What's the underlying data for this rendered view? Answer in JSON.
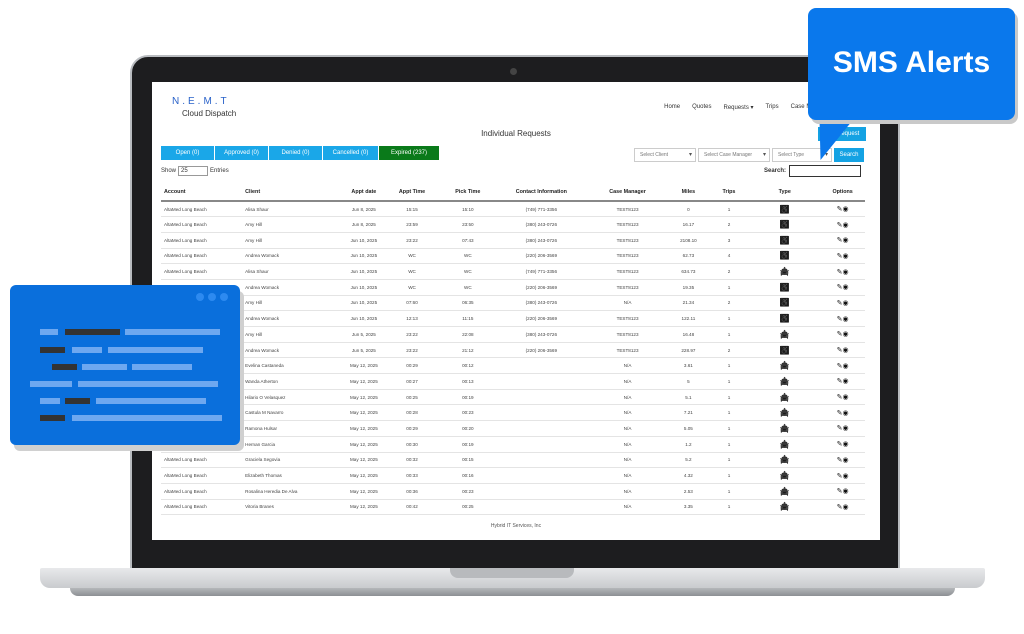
{
  "brand": {
    "line1": "N.E.M.T",
    "line2": "Cloud Dispatch"
  },
  "nav": [
    "Home",
    "Quotes",
    "Requests ▾",
    "Trips",
    "Case Manager"
  ],
  "page_title": "Individual Requests",
  "add_button": "Add Request",
  "tabs": [
    {
      "label": "Open (0)"
    },
    {
      "label": "Approved (0)"
    },
    {
      "label": "Denied (0)"
    },
    {
      "label": "Cancelled (0)"
    },
    {
      "label": "Expired (237)",
      "active": true
    }
  ],
  "filters": {
    "client": "Select Client",
    "case_manager": "Select Case Manager",
    "type": "Select Type",
    "search_button": "Search"
  },
  "show": {
    "label": "Show",
    "value": "25",
    "suffix": "Entries"
  },
  "search_label": "Search:",
  "columns": [
    "Account",
    "Client",
    "Appt date",
    "Appt Time",
    "Pick Time",
    "Contact Information",
    "Case Manager",
    "Miles",
    "Trips",
    "Type",
    "Options"
  ],
  "rows": [
    [
      "AltaMed Long Beach",
      "Alisa Shaur",
      "Jun 8, 2025",
      "15:15",
      "15:10",
      "(749) 771-3356",
      "TEST8123",
      "0",
      "1",
      "wheelchair"
    ],
    [
      "AltaMed Long Beach",
      "Amy Hill",
      "Jun 8, 2025",
      "23:59",
      "23:50",
      "(380) 243-0726",
      "TEST8123",
      "16.17",
      "2",
      "wheelchair"
    ],
    [
      "AltaMed Long Beach",
      "Amy Hill",
      "Jun 10, 2025",
      "23:22",
      "07:43",
      "(380) 243-0726",
      "TEST8123",
      "2108.10",
      "3",
      "wheelchair"
    ],
    [
      "AltaMed Long Beach",
      "Andrea Womack",
      "Jun 10, 2025",
      "WC",
      "WC",
      "(220) 206-3569",
      "TEST8123",
      "62.73",
      "4",
      "wheelchair"
    ],
    [
      "AltaMed Long Beach",
      "Alisa Shaur",
      "Jun 10, 2025",
      "WC",
      "WC",
      "(749) 771-3356",
      "TEST8123",
      "634.73",
      "2",
      "car"
    ],
    [
      "AltaMed Long Beach",
      "Andrea Womack",
      "Jun 10, 2025",
      "WC",
      "WC",
      "(220) 206-3569",
      "TEST8123",
      "19.35",
      "1",
      "wheelchair"
    ],
    [
      "AltaMed Long Beach",
      "Amy Hill",
      "Jun 10, 2025",
      "07:60",
      "06:35",
      "(380) 243-0726",
      "N/A",
      "21.34",
      "2",
      "wheelchair"
    ],
    [
      "AltaMed Long Beach",
      "Andrea Womack",
      "Jun 10, 2025",
      "12:13",
      "11:15",
      "(220) 206-3569",
      "TEST8123",
      "122.11",
      "1",
      "wheelchair"
    ],
    [
      "AltaMed Long Beach",
      "Amy Hill",
      "Jun 5, 2025",
      "23:22",
      "22:08",
      "(380) 243-0726",
      "TEST8123",
      "16.48",
      "1",
      "car"
    ],
    [
      "AltaMed Long Beach",
      "Andrea Womack",
      "Jun 5, 2025",
      "23:22",
      "21:12",
      "(220) 206-3569",
      "TEST8123",
      "228.97",
      "2",
      "wheelchair"
    ],
    [
      "AltaMed Long Beach",
      "Evelina Castaneda",
      "May 12, 2025",
      "00:29",
      "00:12",
      "",
      "N/A",
      "3.61",
      "1",
      "car"
    ],
    [
      "AltaMed Long Beach",
      "Wanda Atherton",
      "May 12, 2025",
      "00:27",
      "00:13",
      "",
      "N/A",
      "5",
      "1",
      "car"
    ],
    [
      "AltaMed Long Beach",
      "Hilario O Velasquez",
      "May 12, 2025",
      "00:25",
      "00:19",
      "",
      "N/A",
      "5.1",
      "1",
      "car"
    ],
    [
      "AltaMed Long Beach",
      "Castula M Navarro",
      "May 12, 2025",
      "00:28",
      "00:23",
      "",
      "N/A",
      "7.21",
      "1",
      "car"
    ],
    [
      "AltaMed Long Beach",
      "Ramona Hulsar",
      "May 12, 2025",
      "00:29",
      "00:20",
      "",
      "N/A",
      "5.05",
      "1",
      "car"
    ],
    [
      "AltaMed Long Beach",
      "Hernan Garcia",
      "May 12, 2025",
      "00:30",
      "00:19",
      "",
      "N/A",
      "1.2",
      "1",
      "car"
    ],
    [
      "AltaMed Long Beach",
      "Graciela Segovia",
      "May 12, 2025",
      "00:32",
      "00:15",
      "",
      "N/A",
      "5.2",
      "1",
      "car"
    ],
    [
      "AltaMed Long Beach",
      "Elizabeth Thomas",
      "May 12, 2025",
      "00:33",
      "00:16",
      "",
      "N/A",
      "4.32",
      "1",
      "car"
    ],
    [
      "AltaMed Long Beach",
      "Rosalina Heredia De Alva",
      "May 12, 2025",
      "00:36",
      "00:23",
      "",
      "N/A",
      "2.53",
      "1",
      "car"
    ],
    [
      "AltaMed Long Beach",
      "Vitoria Branes",
      "May 12, 2025",
      "00:42",
      "00:25",
      "",
      "N/A",
      "3.35",
      "1",
      "car"
    ]
  ],
  "footer": "Hybrid IT Services, Inc",
  "callout": "SMS Alerts",
  "colors": {
    "accent": "#14a2e3",
    "active_tab": "#0a7a1a",
    "callout": "#0a78ec"
  }
}
